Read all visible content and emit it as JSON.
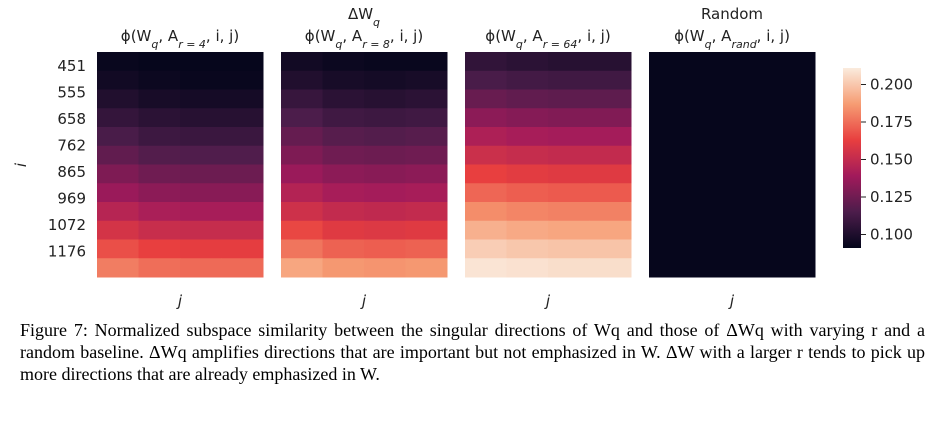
{
  "chart_data": {
    "type": "heatmap",
    "ylabel": "i",
    "ylim": [
      396,
      1276
    ],
    "yticks": [
      451,
      555,
      658,
      762,
      865,
      969,
      1072,
      1176
    ],
    "colormap": [
      "#03051a",
      "#4c1d4b",
      "#a11a5b",
      "#e83f3f",
      "#f69c73",
      "#faebdd"
    ],
    "colorbar": {
      "vlim": [
        0.091,
        0.211
      ],
      "ticks": [
        {
          "value": 0.2,
          "label": "0.200"
        },
        {
          "value": 0.175,
          "label": "0.175"
        },
        {
          "value": 0.15,
          "label": "0.150"
        },
        {
          "value": 0.125,
          "label": "0.125"
        },
        {
          "value": 0.1,
          "label": "0.100"
        }
      ]
    },
    "panels": [
      {
        "title_parts": [
          {
            "text": "ϕ(W"
          },
          {
            "text": "q",
            "sub": true
          },
          {
            "text": ", A"
          },
          {
            "text": "r = 4",
            "sub": true
          },
          {
            "text": ", i, j)"
          }
        ],
        "xlabel": "j",
        "values": [
          [
            0.093,
            0.092,
            0.092,
            0.092
          ],
          [
            0.096,
            0.094,
            0.093,
            0.093
          ],
          [
            0.101,
            0.098,
            0.097,
            0.097
          ],
          [
            0.107,
            0.104,
            0.103,
            0.103
          ],
          [
            0.114,
            0.11,
            0.109,
            0.109
          ],
          [
            0.121,
            0.117,
            0.116,
            0.116
          ],
          [
            0.129,
            0.125,
            0.124,
            0.124
          ],
          [
            0.137,
            0.133,
            0.132,
            0.132
          ],
          [
            0.146,
            0.142,
            0.141,
            0.141
          ],
          [
            0.156,
            0.152,
            0.151,
            0.151
          ],
          [
            0.167,
            0.163,
            0.162,
            0.162
          ],
          [
            0.179,
            0.175,
            0.174,
            0.174
          ]
        ]
      },
      {
        "supertitle_parts": [
          {
            "text": "ΔW"
          },
          {
            "text": "q",
            "sub": true
          }
        ],
        "title_parts": [
          {
            "text": "ϕ(W"
          },
          {
            "text": "q",
            "sub": true
          },
          {
            "text": ", A"
          },
          {
            "text": "r = 8",
            "sub": true
          },
          {
            "text": ", i, j)"
          }
        ],
        "xlabel": "j",
        "values": [
          [
            0.096,
            0.094,
            0.093,
            0.093
          ],
          [
            0.101,
            0.098,
            0.097,
            0.098
          ],
          [
            0.108,
            0.104,
            0.103,
            0.104
          ],
          [
            0.115,
            0.111,
            0.11,
            0.111
          ],
          [
            0.122,
            0.118,
            0.117,
            0.118
          ],
          [
            0.129,
            0.125,
            0.124,
            0.125
          ],
          [
            0.137,
            0.133,
            0.132,
            0.133
          ],
          [
            0.145,
            0.141,
            0.14,
            0.141
          ],
          [
            0.154,
            0.15,
            0.149,
            0.15
          ],
          [
            0.165,
            0.16,
            0.159,
            0.16
          ],
          [
            0.177,
            0.172,
            0.171,
            0.172
          ],
          [
            0.19,
            0.186,
            0.185,
            0.186
          ]
        ]
      },
      {
        "title_parts": [
          {
            "text": "ϕ(W"
          },
          {
            "text": "q",
            "sub": true
          },
          {
            "text": ", A"
          },
          {
            "text": "r = 64",
            "sub": true
          },
          {
            "text": ", i, j)"
          }
        ],
        "xlabel": "j",
        "values": [
          [
            0.106,
            0.104,
            0.103,
            0.103
          ],
          [
            0.114,
            0.112,
            0.111,
            0.111
          ],
          [
            0.123,
            0.121,
            0.12,
            0.12
          ],
          [
            0.133,
            0.131,
            0.13,
            0.13
          ],
          [
            0.143,
            0.141,
            0.14,
            0.14
          ],
          [
            0.153,
            0.151,
            0.15,
            0.15
          ],
          [
            0.163,
            0.161,
            0.16,
            0.16
          ],
          [
            0.173,
            0.171,
            0.17,
            0.17
          ],
          [
            0.183,
            0.181,
            0.18,
            0.18
          ],
          [
            0.193,
            0.191,
            0.19,
            0.19
          ],
          [
            0.202,
            0.2,
            0.199,
            0.199
          ],
          [
            0.209,
            0.208,
            0.207,
            0.207
          ]
        ]
      },
      {
        "supertitle_parts": [
          {
            "text": "Random"
          }
        ],
        "title_parts": [
          {
            "text": "ϕ(W"
          },
          {
            "text": "q",
            "sub": true
          },
          {
            "text": ", A"
          },
          {
            "text": "rand",
            "sub": true
          },
          {
            "text": ", i, j)"
          }
        ],
        "xlabel": "j",
        "values": [
          [
            0.092,
            0.092,
            0.092,
            0.092
          ],
          [
            0.092,
            0.092,
            0.092,
            0.092
          ],
          [
            0.092,
            0.092,
            0.092,
            0.092
          ],
          [
            0.092,
            0.092,
            0.092,
            0.092
          ],
          [
            0.092,
            0.092,
            0.092,
            0.092
          ],
          [
            0.092,
            0.092,
            0.092,
            0.092
          ],
          [
            0.092,
            0.092,
            0.092,
            0.092
          ],
          [
            0.092,
            0.092,
            0.092,
            0.092
          ],
          [
            0.092,
            0.092,
            0.092,
            0.092
          ],
          [
            0.092,
            0.092,
            0.092,
            0.092
          ],
          [
            0.092,
            0.092,
            0.092,
            0.092
          ],
          [
            0.092,
            0.092,
            0.092,
            0.092
          ]
        ]
      }
    ]
  },
  "caption": "Figure 7: Normalized subspace similarity between the singular directions of Wq and those of ΔWq with varying r and a random baseline. ΔWq amplifies directions that are important but not emphasized in W. ΔW with a larger r tends to pick up more directions that are already emphasized in W."
}
